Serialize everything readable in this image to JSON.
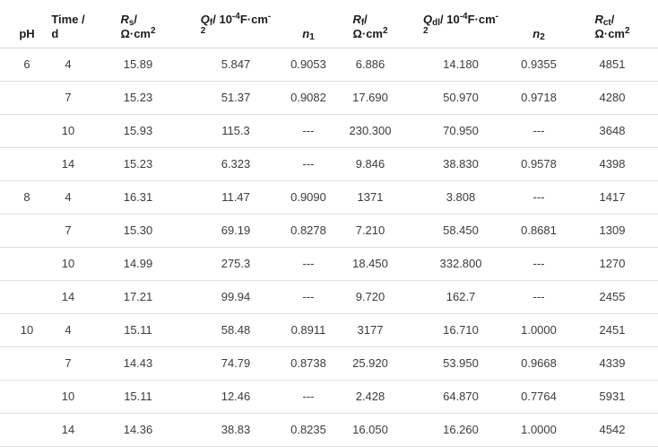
{
  "table": {
    "description": "EIS equivalent-circuit fitting parameters table",
    "columns": [
      {
        "name": "ph",
        "plain_label": "pH",
        "segments": [
          {
            "t": "pH"
          }
        ]
      },
      {
        "name": "time",
        "plain_label": "Time / d",
        "segments": [
          {
            "t": "Time /"
          },
          {
            "br": true
          },
          {
            "t": "d"
          }
        ]
      },
      {
        "name": "rs",
        "plain_label": "Rs / Ohm·cm2",
        "segments": [
          {
            "t": "R",
            "s": "i"
          },
          {
            "t": "s",
            "s": "sub"
          },
          {
            "t": "/"
          },
          {
            "br": true
          },
          {
            "t": "Ω·cm"
          },
          {
            "t": "2",
            "s": "sup"
          }
        ]
      },
      {
        "name": "qf",
        "plain_label": "Qf / 10^-4 F·cm^-2",
        "segments": [
          {
            "t": "Q",
            "s": "i"
          },
          {
            "t": "f",
            "s": "sub"
          },
          {
            "t": "/ 10"
          },
          {
            "t": "-4",
            "s": "sup"
          },
          {
            "t": "F·cm"
          },
          {
            "t": "-",
            "s": "sup"
          },
          {
            "br": true
          },
          {
            "t": "2",
            "s": "sup"
          }
        ]
      },
      {
        "name": "n1",
        "plain_label": "n1",
        "segments": [
          {
            "t": "n",
            "s": "i"
          },
          {
            "t": "1",
            "s": "sub"
          }
        ]
      },
      {
        "name": "rf",
        "plain_label": "Rf / Ohm·cm2",
        "segments": [
          {
            "t": "R",
            "s": "i"
          },
          {
            "t": "f",
            "s": "sub"
          },
          {
            "t": "/"
          },
          {
            "br": true
          },
          {
            "t": "Ω·cm"
          },
          {
            "t": "2",
            "s": "sup"
          }
        ]
      },
      {
        "name": "qdl",
        "plain_label": "Qdl / 10^-4 F·cm^-2",
        "segments": [
          {
            "t": "Q",
            "s": "i"
          },
          {
            "t": "dl",
            "s": "sub"
          },
          {
            "t": "/ 10"
          },
          {
            "t": "-4",
            "s": "sup"
          },
          {
            "t": "F·cm"
          },
          {
            "t": "-",
            "s": "sup"
          },
          {
            "br": true
          },
          {
            "t": "2",
            "s": "sup"
          }
        ]
      },
      {
        "name": "n2",
        "plain_label": "n2",
        "segments": [
          {
            "t": "n",
            "s": "i"
          },
          {
            "t": "2",
            "s": "sub"
          }
        ]
      },
      {
        "name": "rct",
        "plain_label": "Rct / Ohm·cm2",
        "segments": [
          {
            "t": "R",
            "s": "i"
          },
          {
            "t": "ct",
            "s": "sub"
          },
          {
            "t": "/"
          },
          {
            "br": true
          },
          {
            "t": "Ω·cm"
          },
          {
            "t": "2",
            "s": "sup"
          }
        ]
      }
    ],
    "rows": [
      [
        "6",
        "4",
        "15.89",
        "5.847",
        "0.9053",
        "6.886",
        "14.180",
        "0.9355",
        "4851"
      ],
      [
        "",
        "7",
        "15.23",
        "51.37",
        "0.9082",
        "17.690",
        "50.970",
        "0.9718",
        "4280"
      ],
      [
        "",
        "10",
        "15.93",
        "115.3",
        "---",
        "230.300",
        "70.950",
        "---",
        "3648"
      ],
      [
        "",
        "14",
        "15.23",
        "6.323",
        "---",
        "9.846",
        "38.830",
        "0.9578",
        "4398"
      ],
      [
        "8",
        "4",
        "16.31",
        "11.47",
        "0.9090",
        "1371",
        "3.808",
        "---",
        "1417"
      ],
      [
        "",
        "7",
        "15.30",
        "69.19",
        "0.8278",
        "7.210",
        "58.450",
        "0.8681",
        "1309"
      ],
      [
        "",
        "10",
        "14.99",
        "275.3",
        "---",
        "18.450",
        "332.800",
        "---",
        "1270"
      ],
      [
        "",
        "14",
        "17.21",
        "99.94",
        "---",
        "9.720",
        "162.7",
        "---",
        "2455"
      ],
      [
        "10",
        "4",
        "15.11",
        "58.48",
        "0.8911",
        "3177",
        "16.710",
        "1.0000",
        "2451"
      ],
      [
        "",
        "7",
        "14.43",
        "74.79",
        "0.8738",
        "25.920",
        "53.950",
        "0.9668",
        "4339"
      ],
      [
        "",
        "10",
        "15.11",
        "12.46",
        "---",
        "2.428",
        "64.870",
        "0.7764",
        "5931"
      ],
      [
        "",
        "14",
        "14.36",
        "38.83",
        "0.8235",
        "16.050",
        "16.260",
        "1.0000",
        "4542"
      ]
    ]
  },
  "colors": {
    "header_text": "#1c1c1c",
    "body_text": "#3c3c3c",
    "divider": "#e0e0e0",
    "background": "#ffffff"
  }
}
